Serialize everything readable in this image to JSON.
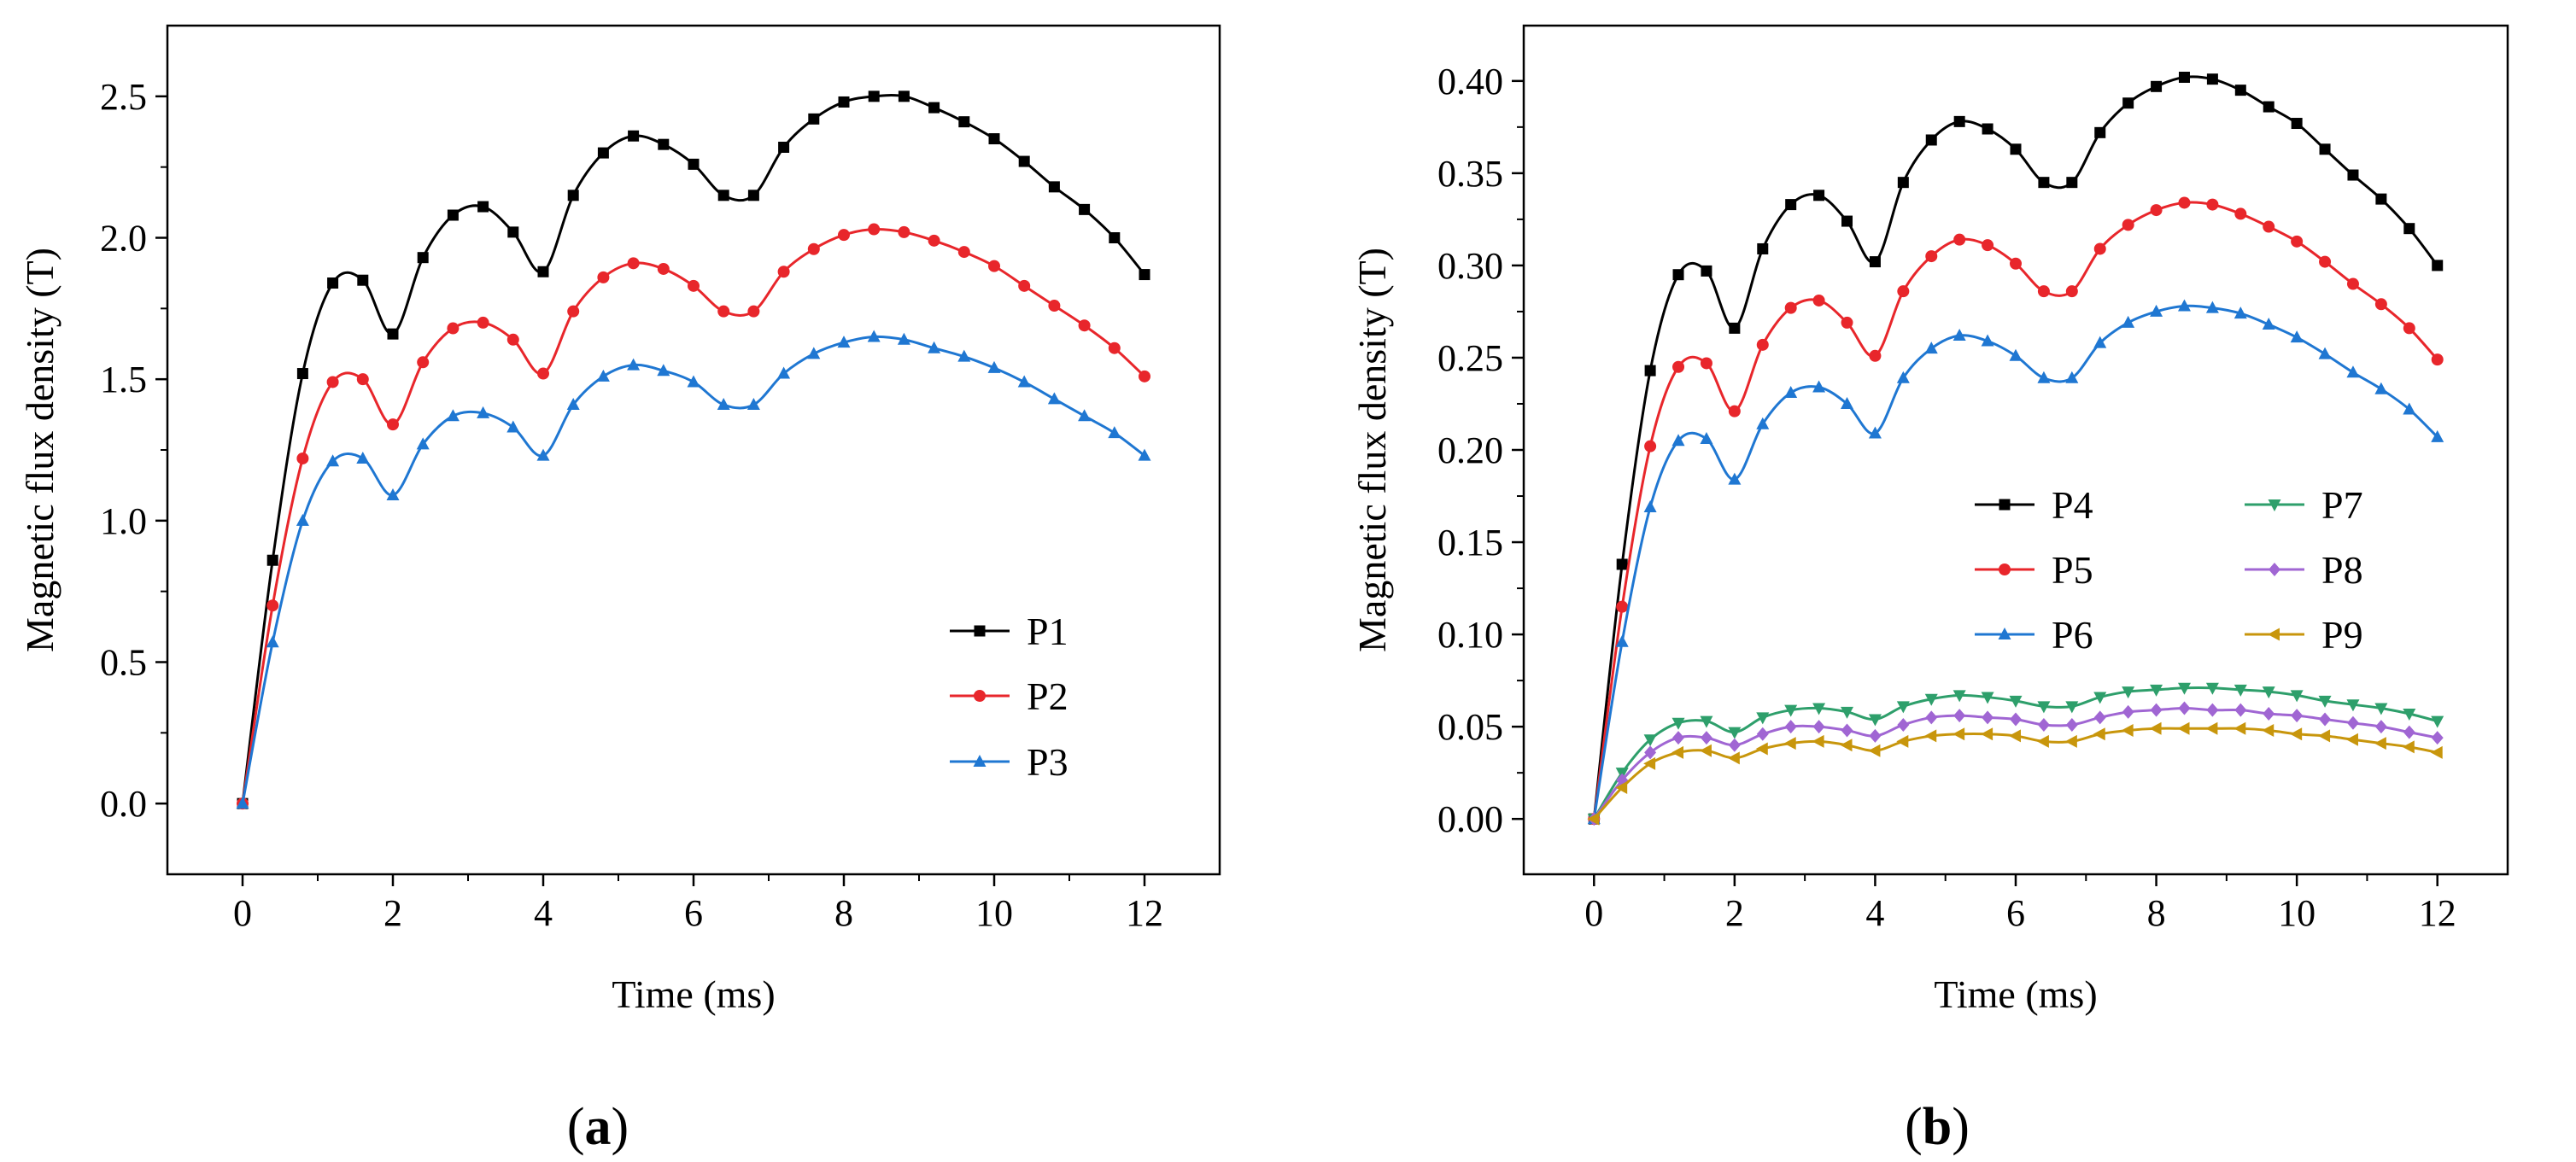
{
  "chart_data": [
    {
      "type": "line",
      "panel_label": {
        "open": "(",
        "letter": "a",
        "close": ")"
      },
      "xlabel": "Time (ms)",
      "ylabel": "Magnetic flux density (T)",
      "xlim": [
        -1,
        13
      ],
      "ylim": [
        -0.25,
        2.75
      ],
      "xticks": [
        0,
        2,
        4,
        6,
        8,
        10,
        12
      ],
      "xtick_labels": [
        "0",
        "2",
        "4",
        "6",
        "8",
        "10",
        "12"
      ],
      "yticks": [
        0,
        0.5,
        1,
        1.5,
        2,
        2.5
      ],
      "ytick_labels": [
        "0.0",
        "0.5",
        "1.0",
        "1.5",
        "2.0",
        "2.5"
      ],
      "legend_position": "bottom-right",
      "x": [
        0,
        0.4,
        0.8,
        1.2,
        1.6,
        2,
        2.4,
        2.8,
        3.2,
        3.6,
        4,
        4.4,
        4.8,
        5.2,
        5.6,
        6,
        6.4,
        6.8,
        7.2,
        7.6,
        8,
        8.4,
        8.8,
        9.2,
        9.6,
        10,
        10.4,
        10.8,
        11.2,
        11.6,
        12
      ],
      "series": [
        {
          "name": "P1",
          "color": "#000000",
          "marker": "square",
          "values": [
            0,
            0.86,
            1.52,
            1.84,
            1.85,
            1.66,
            1.93,
            2.08,
            2.11,
            2.02,
            1.88,
            2.15,
            2.3,
            2.36,
            2.33,
            2.26,
            2.15,
            2.15,
            2.32,
            2.42,
            2.48,
            2.5,
            2.5,
            2.46,
            2.41,
            2.35,
            2.27,
            2.18,
            2.1,
            2.0,
            1.87
          ]
        },
        {
          "name": "P2",
          "color": "#e8262b",
          "marker": "circle",
          "values": [
            0,
            0.7,
            1.22,
            1.49,
            1.5,
            1.34,
            1.56,
            1.68,
            1.7,
            1.64,
            1.52,
            1.74,
            1.86,
            1.91,
            1.89,
            1.83,
            1.74,
            1.74,
            1.88,
            1.96,
            2.01,
            2.03,
            2.02,
            1.99,
            1.95,
            1.9,
            1.83,
            1.76,
            1.69,
            1.61,
            1.51
          ]
        },
        {
          "name": "P3",
          "color": "#1f77d2",
          "marker": "triangle-up",
          "values": [
            0,
            0.57,
            1.0,
            1.21,
            1.22,
            1.09,
            1.27,
            1.37,
            1.38,
            1.33,
            1.23,
            1.41,
            1.51,
            1.55,
            1.53,
            1.49,
            1.41,
            1.41,
            1.52,
            1.59,
            1.63,
            1.65,
            1.64,
            1.61,
            1.58,
            1.54,
            1.49,
            1.43,
            1.37,
            1.31,
            1.23
          ]
        }
      ]
    },
    {
      "type": "line",
      "panel_label": {
        "open": "(",
        "letter": "b",
        "close": ")"
      },
      "xlabel": "Time (ms)",
      "ylabel": "Magnetic flux density (T)",
      "xlim": [
        -1,
        13
      ],
      "ylim": [
        -0.03,
        0.43
      ],
      "xticks": [
        0,
        2,
        4,
        6,
        8,
        10,
        12
      ],
      "xtick_labels": [
        "0",
        "2",
        "4",
        "6",
        "8",
        "10",
        "12"
      ],
      "yticks": [
        0,
        0.05,
        0.1,
        0.15,
        0.2,
        0.25,
        0.3,
        0.35,
        0.4
      ],
      "ytick_labels": [
        "0.00",
        "0.05",
        "0.10",
        "0.15",
        "0.20",
        "0.25",
        "0.30",
        "0.35",
        "0.40"
      ],
      "legend_position": "center-right, two columns",
      "x": [
        0,
        0.4,
        0.8,
        1.2,
        1.6,
        2,
        2.4,
        2.8,
        3.2,
        3.6,
        4,
        4.4,
        4.8,
        5.2,
        5.6,
        6,
        6.4,
        6.8,
        7.2,
        7.6,
        8,
        8.4,
        8.8,
        9.2,
        9.6,
        10,
        10.4,
        10.8,
        11.2,
        11.6,
        12
      ],
      "series": [
        {
          "name": "P4",
          "color": "#000000",
          "marker": "square",
          "values": [
            0,
            0.138,
            0.243,
            0.295,
            0.297,
            0.266,
            0.309,
            0.333,
            0.338,
            0.324,
            0.302,
            0.345,
            0.368,
            0.378,
            0.374,
            0.363,
            0.345,
            0.345,
            0.372,
            0.388,
            0.397,
            0.402,
            0.401,
            0.395,
            0.386,
            0.377,
            0.363,
            0.349,
            0.336,
            0.32,
            0.3
          ]
        },
        {
          "name": "P5",
          "color": "#e8262b",
          "marker": "circle",
          "values": [
            0,
            0.115,
            0.202,
            0.245,
            0.247,
            0.221,
            0.257,
            0.277,
            0.281,
            0.269,
            0.251,
            0.286,
            0.305,
            0.314,
            0.311,
            0.301,
            0.286,
            0.286,
            0.309,
            0.322,
            0.33,
            0.334,
            0.333,
            0.328,
            0.321,
            0.313,
            0.302,
            0.29,
            0.279,
            0.266,
            0.249
          ]
        },
        {
          "name": "P6",
          "color": "#1f77d2",
          "marker": "triangle-up",
          "values": [
            0,
            0.096,
            0.169,
            0.205,
            0.206,
            0.184,
            0.214,
            0.231,
            0.234,
            0.225,
            0.209,
            0.239,
            0.255,
            0.262,
            0.259,
            0.251,
            0.239,
            0.239,
            0.258,
            0.269,
            0.275,
            0.278,
            0.277,
            0.274,
            0.268,
            0.261,
            0.252,
            0.242,
            0.233,
            0.222,
            0.207
          ]
        },
        {
          "name": "P7",
          "color": "#2e9f6b",
          "marker": "triangle-down",
          "values": [
            0,
            0.025,
            0.043,
            0.052,
            0.053,
            0.047,
            0.055,
            0.059,
            0.06,
            0.058,
            0.054,
            0.061,
            0.065,
            0.067,
            0.066,
            0.064,
            0.061,
            0.061,
            0.066,
            0.069,
            0.07,
            0.071,
            0.071,
            0.07,
            0.069,
            0.067,
            0.064,
            0.062,
            0.06,
            0.057,
            0.053
          ]
        },
        {
          "name": "P8",
          "color": "#a066d3",
          "marker": "diamond",
          "values": [
            0,
            0.021,
            0.036,
            0.044,
            0.044,
            0.04,
            0.046,
            0.05,
            0.05,
            0.048,
            0.045,
            0.051,
            0.055,
            0.056,
            0.055,
            0.054,
            0.051,
            0.051,
            0.055,
            0.058,
            0.059,
            0.06,
            0.059,
            0.059,
            0.057,
            0.056,
            0.054,
            0.052,
            0.05,
            0.047,
            0.044
          ]
        },
        {
          "name": "P9",
          "color": "#c8960c",
          "marker": "triangle-left",
          "values": [
            0,
            0.017,
            0.03,
            0.036,
            0.037,
            0.033,
            0.038,
            0.041,
            0.042,
            0.04,
            0.037,
            0.042,
            0.045,
            0.046,
            0.046,
            0.045,
            0.042,
            0.042,
            0.046,
            0.048,
            0.049,
            0.049,
            0.049,
            0.049,
            0.048,
            0.046,
            0.045,
            0.043,
            0.041,
            0.039,
            0.036
          ]
        }
      ]
    }
  ]
}
